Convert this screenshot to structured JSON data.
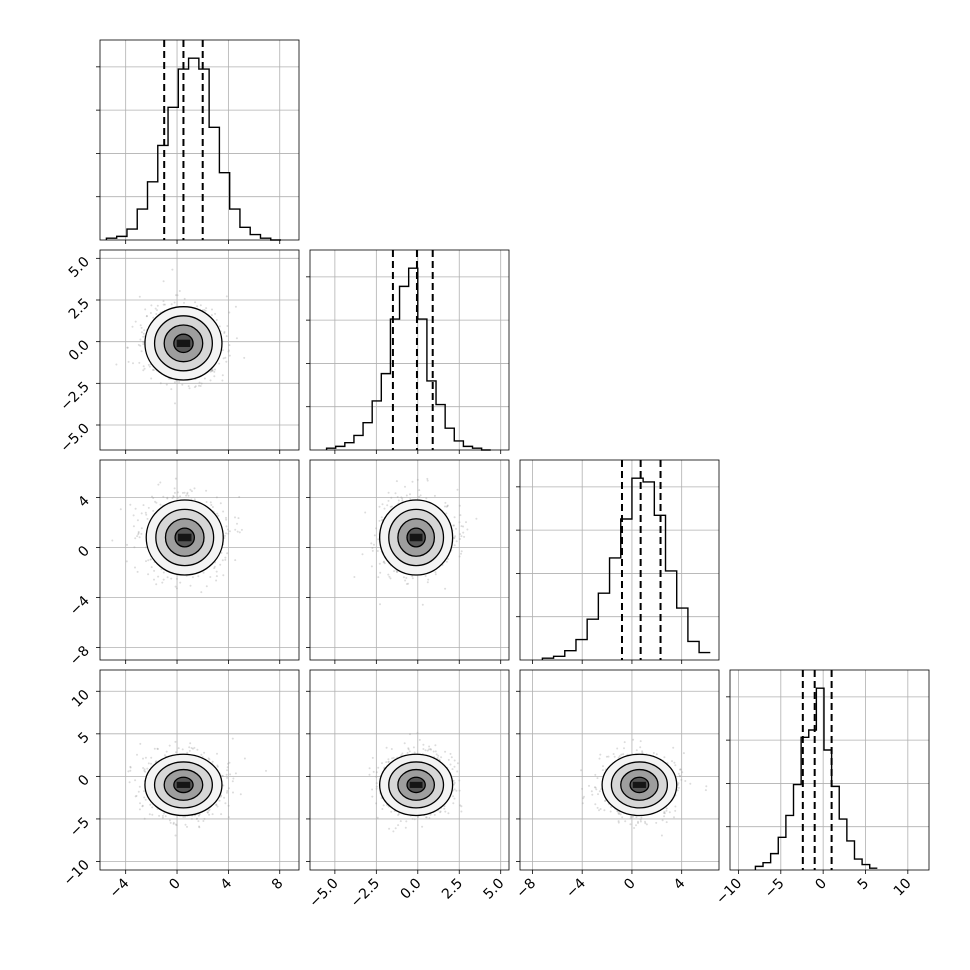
{
  "chart_data": {
    "type": "corner",
    "n_parameters": 4,
    "labels": [
      "",
      "",
      "",
      ""
    ],
    "ranges": [
      [
        -6,
        9.5
      ],
      [
        -6.5,
        5.5
      ],
      [
        -9,
        7
      ],
      [
        -11,
        12.5
      ]
    ],
    "ticks": [
      [
        -4,
        0,
        4,
        8
      ],
      [
        -5.0,
        -2.5,
        0.0,
        2.5,
        5.0
      ],
      [
        -8,
        -4,
        0,
        4
      ],
      [
        -10,
        -5,
        0,
        5,
        10
      ]
    ],
    "tick_labels": [
      [
        "−4",
        "0",
        "4",
        "8"
      ],
      [
        "−5.0",
        "−2.5",
        "0.0",
        "2.5",
        "5.0"
      ],
      [
        "−8",
        "−4",
        "0",
        "4"
      ],
      [
        "−10",
        "−5",
        "0",
        "5",
        "10"
      ]
    ],
    "quantiles": [
      [
        -1.0,
        0.5,
        2.0
      ],
      [
        -1.5,
        -0.05,
        0.9
      ],
      [
        -0.8,
        0.7,
        2.3
      ],
      [
        -2.4,
        -1.0,
        1.0
      ]
    ],
    "histograms": [
      {
        "edges": [
          -5.5,
          -4.7,
          -3.9,
          -3.1,
          -2.3,
          -1.5,
          -0.7,
          0.1,
          0.9,
          1.7,
          2.5,
          3.3,
          4.1,
          4.9,
          5.7,
          6.5,
          7.3,
          8.1
        ],
        "counts": [
          0.01,
          0.02,
          0.06,
          0.17,
          0.32,
          0.52,
          0.73,
          0.94,
          1.0,
          0.94,
          0.62,
          0.37,
          0.17,
          0.07,
          0.03,
          0.01,
          0.0
        ]
      },
      {
        "edges": [
          -5.5,
          -4.95,
          -4.4,
          -3.85,
          -3.3,
          -2.75,
          -2.2,
          -1.65,
          -1.1,
          -0.55,
          0.0,
          0.55,
          1.1,
          1.65,
          2.2,
          2.75,
          3.3,
          3.85,
          4.4
        ],
        "counts": [
          0.01,
          0.02,
          0.04,
          0.08,
          0.15,
          0.27,
          0.42,
          0.72,
          0.9,
          1.0,
          0.72,
          0.38,
          0.25,
          0.12,
          0.05,
          0.02,
          0.01,
          0.0
        ]
      },
      {
        "edges": [
          -7.2,
          -6.3,
          -5.4,
          -4.5,
          -3.6,
          -2.7,
          -1.8,
          -0.9,
          0.0,
          0.9,
          1.8,
          2.7,
          3.6,
          4.5,
          5.4,
          6.3
        ],
        "counts": [
          0.01,
          0.02,
          0.05,
          0.11,
          0.22,
          0.36,
          0.55,
          0.76,
          0.98,
          0.96,
          0.78,
          0.48,
          0.28,
          0.1,
          0.04
        ]
      },
      {
        "edges": [
          -8.0,
          -7.1,
          -6.2,
          -5.3,
          -4.4,
          -3.5,
          -2.6,
          -1.7,
          -0.8,
          0.1,
          1.0,
          1.9,
          2.8,
          3.7,
          4.6,
          5.5,
          6.4
        ],
        "counts": [
          0.02,
          0.04,
          0.09,
          0.18,
          0.3,
          0.47,
          0.73,
          0.77,
          1.0,
          0.66,
          0.46,
          0.28,
          0.16,
          0.06,
          0.03,
          0.01
        ]
      }
    ],
    "pairs": [
      {
        "row": 1,
        "col": 0,
        "center": [
          0.5,
          -0.1
        ],
        "sigma": [
          1.5,
          1.1
        ]
      },
      {
        "row": 2,
        "col": 0,
        "center": [
          0.6,
          0.8
        ],
        "sigma": [
          1.5,
          1.5
        ]
      },
      {
        "row": 2,
        "col": 1,
        "center": [
          -0.1,
          0.8
        ],
        "sigma": [
          1.1,
          1.5
        ]
      },
      {
        "row": 3,
        "col": 0,
        "center": [
          0.5,
          -1.0
        ],
        "sigma": [
          1.5,
          1.8
        ]
      },
      {
        "row": 3,
        "col": 1,
        "center": [
          -0.1,
          -1.0
        ],
        "sigma": [
          1.1,
          1.8
        ]
      },
      {
        "row": 3,
        "col": 2,
        "center": [
          0.6,
          -1.0
        ],
        "sigma": [
          1.5,
          1.8
        ]
      }
    ],
    "contour_levels_sigma": [
      0.5,
      1.0,
      1.5,
      2.0
    ],
    "grid": true,
    "colors": {
      "line": "#000000",
      "grid": "#b0b0b0",
      "scatter": "#9a9a9a",
      "background": "#ffffff"
    }
  }
}
